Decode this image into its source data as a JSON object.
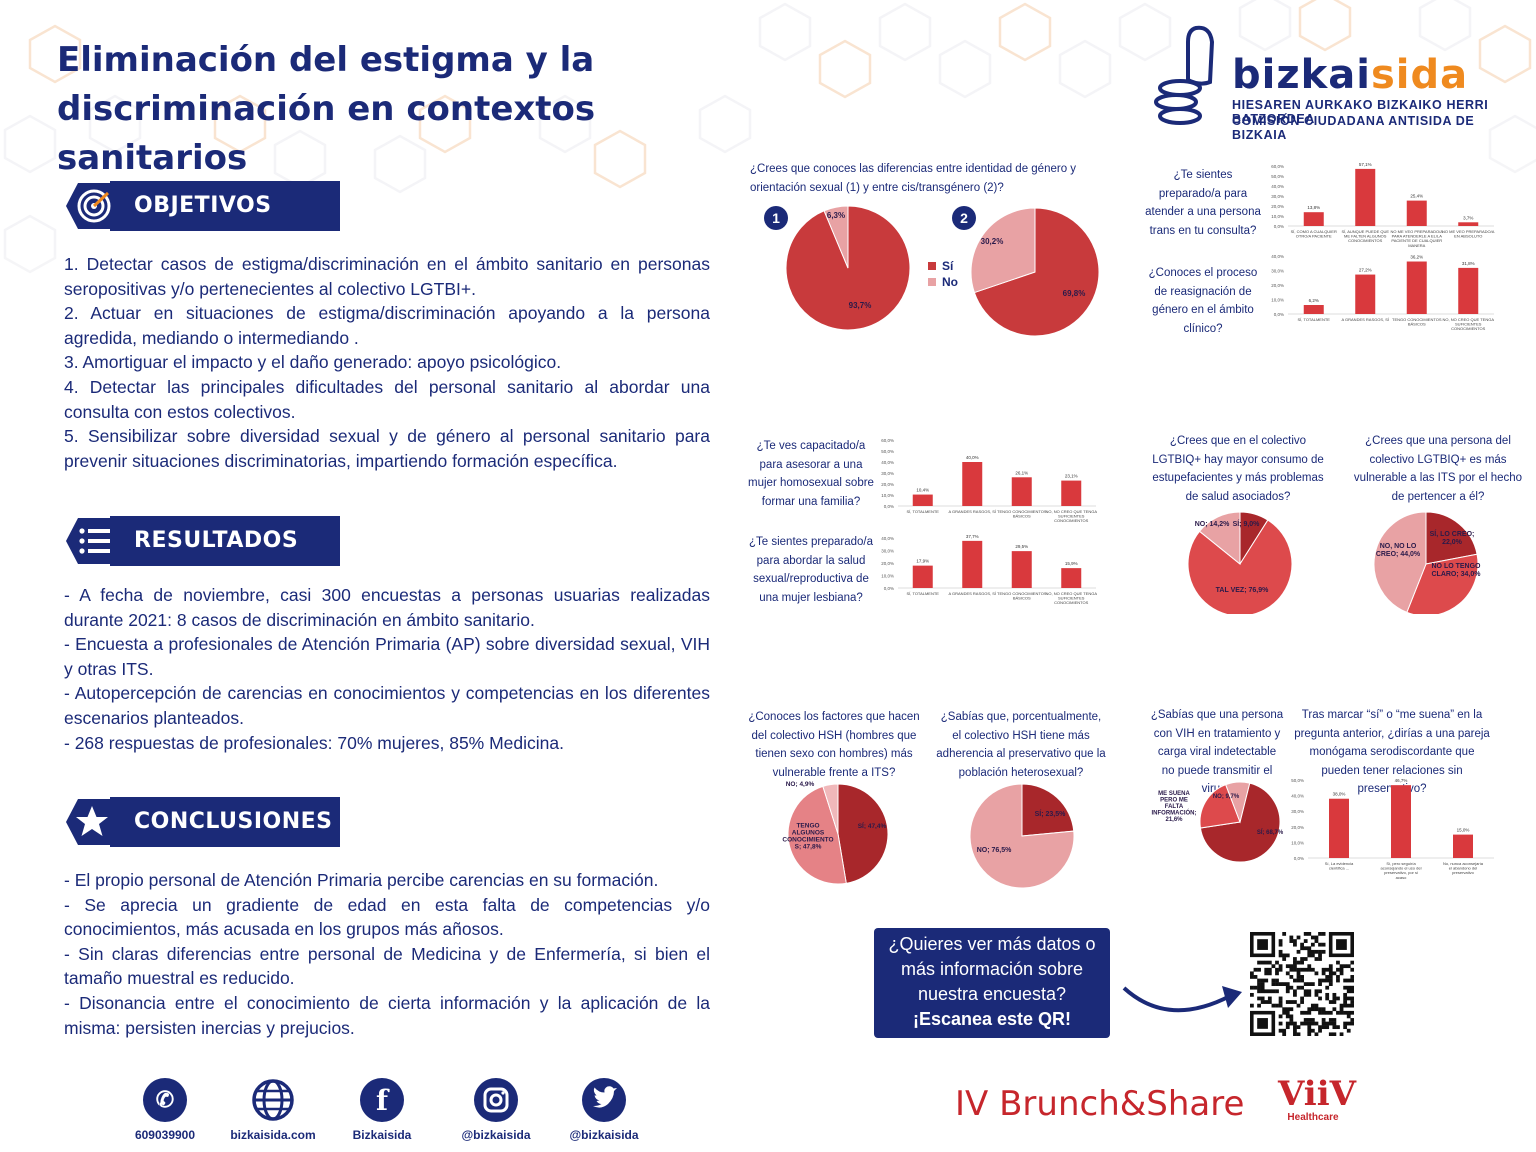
{
  "title": {
    "line1": "Eliminación del estigma y la",
    "line2": "discriminación en contextos sanitarios"
  },
  "logo": {
    "name_a": "bizkai",
    "name_b": "sida",
    "sub1": "HIESAREN AURKAKO BIZKAIKO HERRI BATZORDEA",
    "sub2": "COMISIÓN CIUDADANA ANTISIDA DE BIZKAIA"
  },
  "colors": {
    "navy": "#1b2a78",
    "red": "#c83a3c",
    "pink": "#e8a2a4",
    "orange": "#ef8a1f"
  },
  "objetivos": {
    "heading": "OBJETIVOS",
    "icon": "target-icon",
    "items": [
      "1. Detectar casos de estigma/discriminación en el ámbito sanitario en personas seropositivas y/o pertenecientes al colectivo LGTBI+.",
      "2. Actuar en situaciones de estigma/discriminación apoyando a la persona agredida, mediando o intermediando .",
      "3. Amortiguar el impacto y el daño generado: apoyo psicológico.",
      "4. Detectar las principales dificultades del personal sanitario al abordar una consulta con estos colectivos.",
      "5. Sensibilizar sobre diversidad sexual y de género al personal sanitario para prevenir situaciones discriminatorias, impartiendo formación específica."
    ]
  },
  "resultados": {
    "heading": "RESULTADOS",
    "icon": "list-icon",
    "items": [
      "- A fecha de noviembre, casi 300 encuestas a personas usuarias realizadas durante 2021: 8 casos de discriminación en ámbito sanitario.",
      "- Encuesta a profesionales de Atención Primaria (AP) sobre diversidad sexual, VIH y otras ITS.",
      "- Autopercepción de carencias en conocimientos y competencias en los diferentes escenarios planteados.",
      "- 268 respuestas de profesionales: 70% mujeres, 85% Medicina."
    ]
  },
  "conclusiones": {
    "heading": "CONCLUSIONES",
    "icon": "star-icon",
    "items": [
      "- El propio personal de Atención Primaria percibe carencias en su formación.",
      "- Se aprecia un gradiente de edad en esta falta de competencias y/o conocimientos, más acusada en los grupos más añosos.",
      "- Sin claras diferencias entre personal de Medicina y de Enfermería, si bien el tamaño muestral es reducido.",
      "- Disonancia entre el conocimiento de cierta información y la aplicación de la misma: persisten inercias y prejucios."
    ]
  },
  "questions": {
    "q1": "¿Crees que conoces las diferencias entre identidad de género y orientación sexual (1) y entre cis/transgénero (2)?",
    "q2": "¿Te sientes preparado/a para atender a una persona trans en tu consulta?",
    "q3": "¿Conoces el proceso de reasignación de género en el ámbito clínico?",
    "q4": "¿Te ves capacitado/a para asesorar a una mujer homosexual sobre formar una familia?",
    "q5": "¿Te sientes preparado/a para abordar la salud sexual/reproductiva de una mujer lesbiana?",
    "q6": "¿Crees que en el colectivo LGTBIQ+ hay mayor consumo de estupefacientes y más problemas de salud asociados?",
    "q7": "¿Crees que una persona del colectivo LGTBIQ+ es más vulnerable a las ITS por el hecho de pertencer a él?",
    "q8": "¿Conoces los factores que hacen del colectivo HSH (hombres que tienen sexo con hombres) más vulnerable frente a ITS?",
    "q9": "¿Sabías que, porcentualmente, el colectivo HSH tiene más adherencia al preservativo que la población heterosexual?",
    "q10": "¿Sabías que una persona con VIH en tratamiento y carga viral indetectable no puede transmitir el virus?",
    "q11": "Tras marcar “sí” o “me suena” en la pregunta anterior, ¿dirías a una pareja monógama serodiscordante que pueden tener relaciones sin preservativo?"
  },
  "chart_data": [
    {
      "id": "pie1",
      "type": "pie",
      "badge": "1",
      "values": [
        93.7,
        6.3
      ],
      "labels": [
        "93,7%",
        "6,3%"
      ],
      "series_colors": [
        "#c83a3c",
        "#e8a2a4"
      ]
    },
    {
      "id": "pie2",
      "type": "pie",
      "badge": "2",
      "values": [
        69.8,
        30.2
      ],
      "labels": [
        "69,8%",
        "30,2%"
      ],
      "series_colors": [
        "#c83a3c",
        "#e8a2a4"
      ]
    },
    {
      "id": "legend12",
      "type": "legend",
      "entries": [
        "Sí",
        "No"
      ]
    },
    {
      "id": "bar_trans",
      "type": "bar",
      "ylim": [
        0,
        60
      ],
      "yticks": [
        "60,0%",
        "50,0%",
        "40,0%",
        "30,0%",
        "20,0%",
        "10,0%",
        "0,0%"
      ],
      "categories": [
        "SÍ, COMO A CUALQUIER OTRO/A PACIENTE",
        "SÍ, AUNQUE PUEDE QUE ME FALTEN ALGUNOS CONOCIMIENTOS",
        "NO ME VEO PREPARADO/A PARA ATENDERLE A EL/LA PACIENTE DE CUALQUIER MANERA",
        "NO ME VEO PREPARADO/A EN ABSOLUTO"
      ],
      "values": [
        13.8,
        57.1,
        25.4,
        3.7
      ],
      "labels": [
        "13,8%",
        "57,1%",
        "25,4%",
        "3,7%"
      ]
    },
    {
      "id": "bar_reasig",
      "type": "bar",
      "ylim": [
        0,
        40
      ],
      "yticks": [
        "40,0%",
        "30,0%",
        "20,0%",
        "10,0%",
        "0,0%"
      ],
      "categories": [
        "SÍ, TOTALMENTE",
        "A GRANDES RASGOS, SÍ",
        "TENGO CONOCIMIENTOS BÁSICOS",
        "NO, NO CREO QUE TENGA SUFICIENTES CONOCIMIENTOS"
      ],
      "values": [
        6.2,
        27.2,
        36.2,
        31.8
      ],
      "labels": [
        "6,2%",
        "27,2%",
        "36,2%",
        "31,8%"
      ]
    },
    {
      "id": "bar_familia",
      "type": "bar",
      "ylim": [
        0,
        60
      ],
      "yticks": [
        "60,0%",
        "50,0%",
        "40,0%",
        "30,0%",
        "20,0%",
        "10,0%",
        "0,0%"
      ],
      "categories": [
        "SÍ, TOTALMENTE",
        "A GRANDES RASGOS, SÍ",
        "TENGO CONOCIMIENTOS BÁSICOS",
        "NO, NO CREO QUE TENGA SUFICIENTES CONOCIMIENTOS"
      ],
      "values": [
        10.4,
        40.0,
        26.1,
        23.1
      ],
      "labels": [
        "10,4%",
        "40,0%",
        "26,1%",
        "23,1%"
      ]
    },
    {
      "id": "bar_lesbiana",
      "type": "bar",
      "ylim": [
        0,
        40
      ],
      "yticks": [
        "40,0%",
        "30,0%",
        "20,0%",
        "10,0%",
        "0,0%"
      ],
      "categories": [
        "SÍ, TOTALMENTE",
        "A GRANDES RASGOS, SÍ",
        "TENGO CONOCIMIENTOS BÁSICOS",
        "NO, NO CREO QUE TENGA SUFICIENTES CONOCIMIENTOS"
      ],
      "values": [
        17.9,
        37.7,
        29.5,
        15.9
      ],
      "labels": [
        "17,9%",
        "37,7%",
        "29,5%",
        "15,9%"
      ]
    },
    {
      "id": "pie_estupef",
      "type": "pie",
      "values": [
        9.0,
        76.9,
        14.2
      ],
      "labels": [
        "SÍ; 9,0%",
        "TAL VEZ; 76,9%",
        "NO; 14,2%"
      ],
      "series_colors": [
        "#a8272b",
        "#dd4a4c",
        "#e8a2a4"
      ]
    },
    {
      "id": "pie_its",
      "type": "pie",
      "values": [
        22.0,
        34.0,
        44.0
      ],
      "labels": [
        "SÍ, LO CREO; 22,0%",
        "NO LO TENGO CLARO; 34,0%",
        "NO, NO LO CREO; 44,0%"
      ],
      "series_colors": [
        "#a8272b",
        "#dd4a4c",
        "#e8a2a4"
      ]
    },
    {
      "id": "pie_hsh",
      "type": "pie",
      "values": [
        47.4,
        47.8,
        4.9
      ],
      "labels": [
        "SÍ; 47,4%",
        "TENGO ALGUNOS CONOCIMIENTO S; 47,8%",
        "NO; 4,9%"
      ],
      "series_colors": [
        "#a8272b",
        "#e58286",
        "#f0b8ba"
      ]
    },
    {
      "id": "pie_preserv",
      "type": "pie",
      "values": [
        23.5,
        76.5
      ],
      "labels": [
        "SÍ; 23,5%",
        "NO; 76,5%"
      ],
      "series_colors": [
        "#a8272b",
        "#e8a2a4"
      ]
    },
    {
      "id": "pie_vih",
      "type": "pie",
      "values": [
        68.7,
        21.6,
        9.7
      ],
      "labels": [
        "SÍ; 68,7%",
        "ME SUENA PERO ME FALTA INFORMACIÓN; 21,6%",
        "NO; 9,7%"
      ],
      "series_colors": [
        "#a8272b",
        "#dd4a4c",
        "#e8a2a4"
      ]
    },
    {
      "id": "bar_pareja",
      "type": "bar",
      "ylim": [
        0,
        50
      ],
      "yticks": [
        "50,0%",
        "40,0%",
        "30,0%",
        "20,0%",
        "10,0%",
        "0,0%"
      ],
      "categories": [
        "Sí, La evidencia científica ...",
        "Sí, pero seguiría aconsejando el uso del preservativo, por si acaso",
        "No, nunca aconsejaría el abandono del preservativo"
      ],
      "values": [
        38.0,
        46.7,
        15.0
      ],
      "labels": [
        "38,0%",
        "46,7%",
        "15,0%"
      ]
    }
  ],
  "qr": {
    "line1": "¿Quieres ver más datos o",
    "line2": "más información sobre",
    "line3": "nuestra encuesta?",
    "line4": "¡Escanea este QR!"
  },
  "social": [
    {
      "icon": "whatsapp-icon",
      "label": "609039900"
    },
    {
      "icon": "globe-icon",
      "label": "bizkaisida.com"
    },
    {
      "icon": "facebook-icon",
      "label": "Bizkaisida"
    },
    {
      "icon": "instagram-icon",
      "label": "@bizkaisida"
    },
    {
      "icon": "twitter-icon",
      "label": "@bizkaisida"
    }
  ],
  "footer": {
    "event": "IV Brunch&Share",
    "sponsor": "ViiV",
    "sponsor_sub": "Healthcare"
  }
}
